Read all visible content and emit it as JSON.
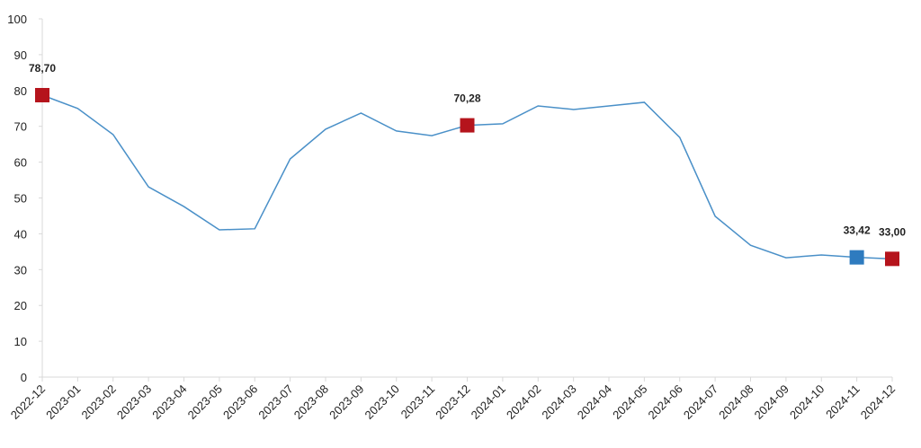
{
  "chart_data": {
    "type": "line",
    "categories": [
      "2022-12",
      "2023-01",
      "2023-02",
      "2023-03",
      "2023-04",
      "2023-05",
      "2023-06",
      "2023-07",
      "2023-08",
      "2023-09",
      "2023-10",
      "2023-11",
      "2023-12",
      "2024-01",
      "2024-02",
      "2024-03",
      "2024-04",
      "2024-05",
      "2024-06",
      "2024-07",
      "2024-08",
      "2024-09",
      "2024-10",
      "2024-11",
      "2024-12"
    ],
    "values": [
      78.7,
      75.0,
      67.7,
      53.1,
      47.6,
      41.1,
      41.4,
      60.9,
      69.2,
      73.7,
      68.7,
      67.4,
      70.28,
      70.7,
      75.7,
      74.7,
      75.7,
      76.7,
      66.9,
      44.9,
      36.8,
      33.3,
      34.1,
      33.42,
      33.0
    ],
    "value_labels": [
      "78,70",
      null,
      null,
      null,
      null,
      null,
      null,
      null,
      null,
      null,
      null,
      null,
      "70,28",
      null,
      null,
      null,
      null,
      null,
      null,
      null,
      null,
      null,
      null,
      "33,42",
      "33,00"
    ],
    "marker_colors": [
      "#b5141c",
      null,
      null,
      null,
      null,
      null,
      null,
      null,
      null,
      null,
      null,
      null,
      "#b5141c",
      null,
      null,
      null,
      null,
      null,
      null,
      null,
      null,
      null,
      null,
      "#2e7bbf",
      "#b5141c"
    ],
    "color": "#4a90c8",
    "ylim": [
      0,
      100
    ],
    "yticks": [
      0,
      10,
      20,
      30,
      40,
      50,
      60,
      70,
      80,
      90,
      100
    ],
    "grid": false
  }
}
